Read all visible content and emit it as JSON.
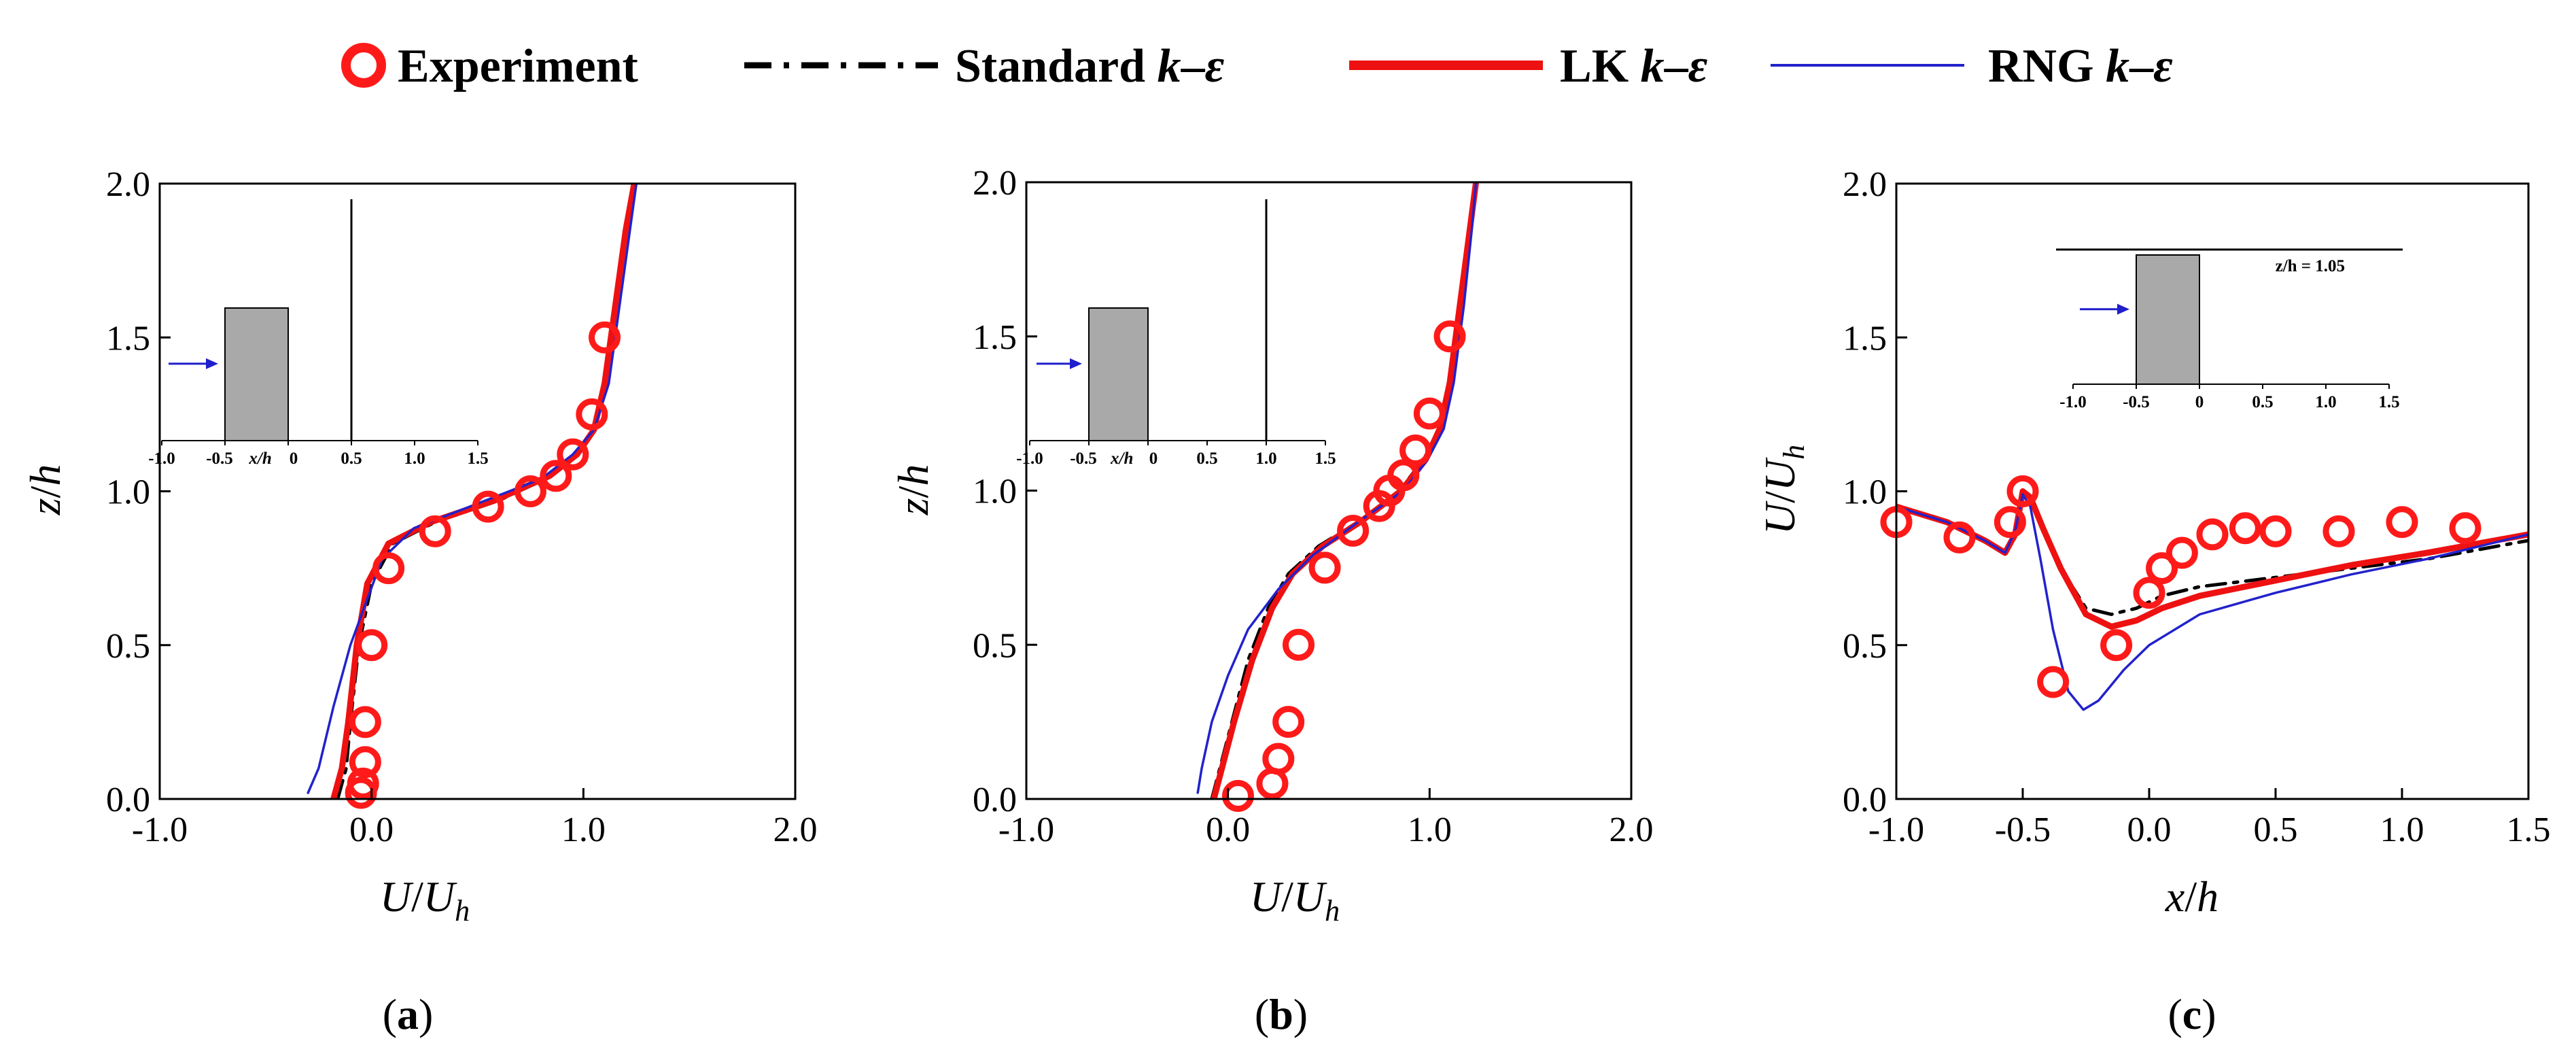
{
  "legend": {
    "items": [
      {
        "key": "experiment",
        "label": "Experiment",
        "style": "circle",
        "color": "#ff1a1a"
      },
      {
        "key": "standard",
        "label": "Standard",
        "style": "dashdot",
        "color": "#000000"
      },
      {
        "key": "lk",
        "label": "LK",
        "style": "thick",
        "color": "#ee1111"
      },
      {
        "key": "rng",
        "label": "RNG",
        "style": "thin",
        "color": "#2222cc"
      }
    ],
    "model_suffix_k": "k",
    "model_suffix_dash": "–",
    "model_suffix_eps": "ε"
  },
  "colors": {
    "experiment": "#ff1a1a",
    "standard": "#000000",
    "lk": "#ee1111",
    "rng": "#2222cc",
    "obstacle": "#a9a9a9",
    "arrow": "#1f1fcc"
  },
  "chart_data": [
    {
      "type": "line",
      "panel": "a",
      "panel_label": "a",
      "xlabel_main": "U",
      "xlabel_slash": "/",
      "xlabel_main2": "U",
      "xlabel_sub": "h",
      "ylabel_main": "z",
      "ylabel_slash": "/",
      "ylabel_main2": "h",
      "xlim": [
        -1.0,
        2.0
      ],
      "ylim": [
        0.0,
        2.0
      ],
      "xticks": [
        -1.0,
        0.0,
        1.0,
        2.0
      ],
      "xtick_labels": [
        "-1.0",
        "0.0",
        "1.0",
        "2.0"
      ],
      "yticks": [
        0.0,
        0.5,
        1.0,
        1.5,
        2.0
      ],
      "ytick_labels": [
        "0.0",
        "0.5",
        "1.0",
        "1.5",
        "2.0"
      ],
      "experiment": {
        "x": [
          -0.05,
          -0.04,
          -0.03,
          -0.03,
          0.0,
          0.08,
          0.3,
          0.55,
          0.75,
          0.87,
          0.95,
          1.04,
          1.1
        ],
        "y": [
          0.02,
          0.05,
          0.12,
          0.25,
          0.5,
          0.75,
          0.87,
          0.95,
          1.0,
          1.05,
          1.12,
          1.25,
          1.5
        ]
      },
      "series": [
        {
          "name": "Standard k–ε",
          "key": "standard",
          "x": [
            -0.16,
            -0.12,
            -0.1,
            -0.06,
            0.0,
            0.1,
            0.3,
            0.6,
            0.85,
            0.97,
            1.05,
            1.1,
            1.15,
            1.2,
            1.24
          ],
          "y": [
            0.0,
            0.1,
            0.25,
            0.5,
            0.7,
            0.83,
            0.9,
            0.97,
            1.05,
            1.12,
            1.2,
            1.35,
            1.6,
            1.85,
            2.0
          ]
        },
        {
          "name": "LK k–ε",
          "key": "lk",
          "x": [
            -0.18,
            -0.14,
            -0.11,
            -0.07,
            -0.02,
            0.08,
            0.28,
            0.58,
            0.84,
            0.97,
            1.05,
            1.1,
            1.15,
            1.2,
            1.24
          ],
          "y": [
            0.0,
            0.1,
            0.25,
            0.5,
            0.7,
            0.83,
            0.9,
            0.97,
            1.05,
            1.12,
            1.2,
            1.35,
            1.6,
            1.85,
            2.0
          ]
        },
        {
          "name": "RNG k–ε",
          "key": "rng",
          "x": [
            -0.3,
            -0.25,
            -0.18,
            -0.1,
            -0.02,
            0.05,
            0.2,
            0.5,
            0.8,
            0.95,
            1.05,
            1.12,
            1.17,
            1.22,
            1.25
          ],
          "y": [
            0.02,
            0.1,
            0.3,
            0.5,
            0.65,
            0.78,
            0.88,
            0.96,
            1.04,
            1.12,
            1.2,
            1.35,
            1.6,
            1.85,
            2.0
          ]
        }
      ],
      "inset": {
        "type": "vertical",
        "xticks": [
          -1.0,
          -0.5,
          0.0,
          0.5,
          1.0,
          1.5
        ],
        "tick_labels": [
          "-1.0",
          "-0.5",
          "x/h",
          "0",
          "0.5",
          "1.0",
          "1.5"
        ],
        "line_at": 0.5
      }
    },
    {
      "type": "line",
      "panel": "b",
      "panel_label": "b",
      "xlabel_main": "U",
      "xlabel_slash": "/",
      "xlabel_main2": "U",
      "xlabel_sub": "h",
      "ylabel_main": "z",
      "ylabel_slash": "/",
      "ylabel_main2": "h",
      "xlim": [
        -1.0,
        2.0
      ],
      "ylim": [
        0.0,
        2.0
      ],
      "xticks": [
        -1.0,
        0.0,
        1.0,
        2.0
      ],
      "xtick_labels": [
        "-1.0",
        "0.0",
        "1.0",
        "2.0"
      ],
      "yticks": [
        0.0,
        0.5,
        1.0,
        1.5,
        2.0
      ],
      "ytick_labels": [
        "0.0",
        "0.5",
        "1.0",
        "1.5",
        "2.0"
      ],
      "experiment": {
        "x": [
          0.05,
          0.22,
          0.25,
          0.3,
          0.35,
          0.48,
          0.62,
          0.75,
          0.8,
          0.87,
          0.93,
          1.0,
          1.1
        ],
        "y": [
          0.01,
          0.05,
          0.13,
          0.25,
          0.5,
          0.75,
          0.87,
          0.95,
          1.0,
          1.05,
          1.13,
          1.25,
          1.5
        ]
      },
      "series": [
        {
          "name": "Standard k–ε",
          "key": "standard",
          "x": [
            -0.08,
            -0.04,
            0.02,
            0.1,
            0.2,
            0.3,
            0.45,
            0.65,
            0.85,
            0.97,
            1.05,
            1.1,
            1.15,
            1.2,
            1.23
          ],
          "y": [
            0.0,
            0.1,
            0.25,
            0.45,
            0.62,
            0.73,
            0.82,
            0.9,
            1.0,
            1.1,
            1.2,
            1.35,
            1.6,
            1.85,
            2.0
          ]
        },
        {
          "name": "LK k–ε",
          "key": "lk",
          "x": [
            -0.07,
            -0.03,
            0.03,
            0.12,
            0.22,
            0.32,
            0.47,
            0.66,
            0.86,
            0.98,
            1.05,
            1.1,
            1.15,
            1.2,
            1.23
          ],
          "y": [
            0.0,
            0.1,
            0.25,
            0.45,
            0.62,
            0.73,
            0.82,
            0.9,
            1.0,
            1.1,
            1.2,
            1.35,
            1.6,
            1.85,
            2.0
          ]
        },
        {
          "name": "RNG k–ε",
          "key": "rng",
          "x": [
            -0.15,
            -0.13,
            -0.08,
            0.0,
            0.1,
            0.25,
            0.42,
            0.65,
            0.87,
            0.99,
            1.07,
            1.12,
            1.17,
            1.21,
            1.23
          ],
          "y": [
            0.02,
            0.1,
            0.25,
            0.4,
            0.55,
            0.68,
            0.79,
            0.9,
            1.0,
            1.1,
            1.2,
            1.35,
            1.6,
            1.85,
            2.0
          ]
        }
      ],
      "inset": {
        "type": "vertical",
        "xticks": [
          -1.0,
          -0.5,
          0.0,
          0.5,
          1.0,
          1.5
        ],
        "tick_labels": [
          "-1.0",
          "-0.5",
          "x/h",
          "0",
          "0.5",
          "1.0",
          "1.5"
        ],
        "line_at": 1.0
      }
    },
    {
      "type": "line",
      "panel": "c",
      "panel_label": "c",
      "xlabel_main": "x",
      "xlabel_slash": "/",
      "xlabel_main2": "h",
      "ylabel_main": "U",
      "ylabel_slash": "/",
      "ylabel_main2": "U",
      "ylabel_sub": "h",
      "xlim": [
        -1.0,
        1.5
      ],
      "ylim": [
        0.0,
        2.0
      ],
      "xticks": [
        -1.0,
        -0.5,
        0.0,
        0.5,
        1.0,
        1.5
      ],
      "xtick_labels": [
        "-1.0",
        "-0.5",
        "0.0",
        "0.5",
        "1.0",
        "1.5"
      ],
      "yticks": [
        0.0,
        0.5,
        1.0,
        1.5,
        2.0
      ],
      "ytick_labels": [
        "0.0",
        "0.5",
        "1.0",
        "1.5",
        "2.0"
      ],
      "experiment": {
        "x": [
          -1.0,
          -0.75,
          -0.55,
          -0.5,
          -0.38,
          -0.13,
          0.0,
          0.05,
          0.13,
          0.25,
          0.38,
          0.5,
          0.75,
          1.0,
          1.25
        ],
        "y": [
          0.9,
          0.85,
          0.9,
          1.0,
          0.38,
          0.5,
          0.67,
          0.75,
          0.8,
          0.86,
          0.88,
          0.87,
          0.87,
          0.9,
          0.88
        ]
      },
      "series": [
        {
          "name": "Standard k–ε",
          "key": "standard",
          "x": [
            -1.0,
            -0.8,
            -0.65,
            -0.57,
            -0.53,
            -0.5,
            -0.47,
            -0.42,
            -0.35,
            -0.25,
            -0.15,
            -0.05,
            0.05,
            0.2,
            0.5,
            0.8,
            1.1,
            1.5
          ],
          "y": [
            0.95,
            0.9,
            0.84,
            0.8,
            0.85,
            0.98,
            0.97,
            0.88,
            0.75,
            0.62,
            0.6,
            0.62,
            0.66,
            0.69,
            0.72,
            0.75,
            0.78,
            0.84
          ]
        },
        {
          "name": "LK k–ε",
          "key": "lk",
          "x": [
            -1.0,
            -0.8,
            -0.65,
            -0.57,
            -0.53,
            -0.5,
            -0.47,
            -0.42,
            -0.35,
            -0.25,
            -0.15,
            -0.05,
            0.05,
            0.2,
            0.5,
            0.8,
            1.1,
            1.5
          ],
          "y": [
            0.95,
            0.9,
            0.84,
            0.8,
            0.86,
            1.0,
            0.98,
            0.88,
            0.75,
            0.6,
            0.56,
            0.58,
            0.62,
            0.66,
            0.71,
            0.76,
            0.8,
            0.86
          ]
        },
        {
          "name": "RNG k–ε",
          "key": "rng",
          "x": [
            -1.0,
            -0.8,
            -0.65,
            -0.57,
            -0.53,
            -0.5,
            -0.47,
            -0.43,
            -0.38,
            -0.32,
            -0.26,
            -0.2,
            -0.1,
            0.0,
            0.2,
            0.5,
            0.8,
            1.1,
            1.5
          ],
          "y": [
            0.95,
            0.9,
            0.84,
            0.8,
            0.87,
            0.99,
            0.95,
            0.78,
            0.55,
            0.35,
            0.29,
            0.32,
            0.42,
            0.5,
            0.6,
            0.67,
            0.73,
            0.78,
            0.86
          ]
        }
      ],
      "inset": {
        "type": "horizontal",
        "xticks": [
          -1.0,
          -0.5,
          0.0,
          0.5,
          1.0,
          1.5
        ],
        "tick_labels": [
          "-1.0",
          "-0.5",
          "0",
          "0.5",
          "1.0",
          "1.5"
        ],
        "line_label": "z/h = 1.05"
      }
    }
  ]
}
